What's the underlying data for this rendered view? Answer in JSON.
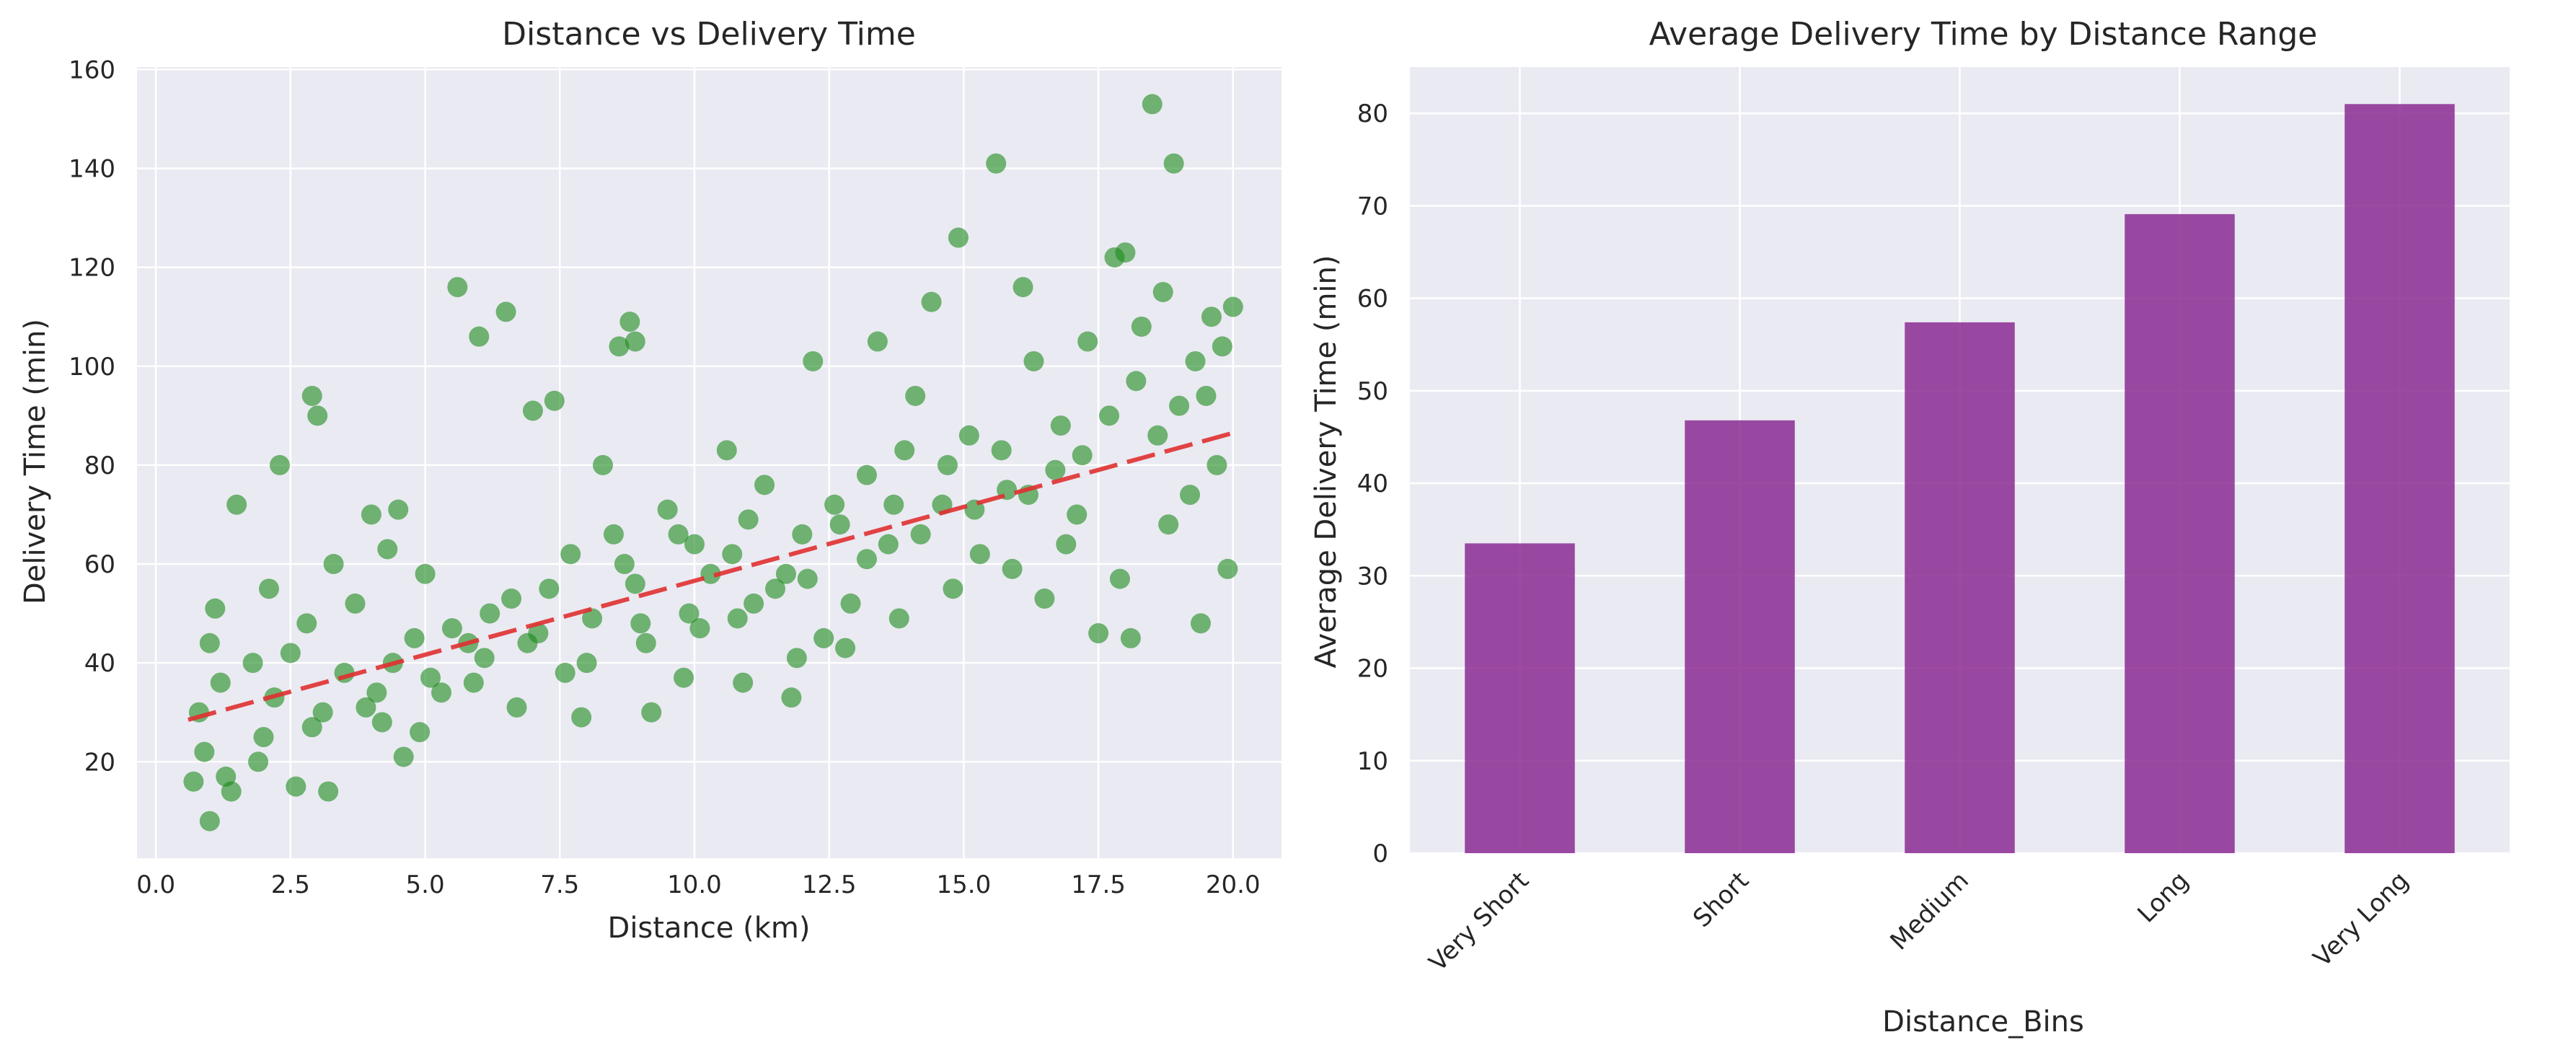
{
  "chart_data": [
    {
      "type": "scatter",
      "title": "Distance vs Delivery Time",
      "xlabel": "Distance (km)",
      "ylabel": "Delivery Time (min)",
      "xlim": [
        -0.35,
        20.9
      ],
      "ylim": [
        0.5,
        160.5
      ],
      "xticks": [
        0,
        2.5,
        5,
        7.5,
        10,
        12.5,
        15,
        17.5,
        20
      ],
      "xtick_labels": [
        "0.0",
        "2.5",
        "5.0",
        "7.5",
        "10.0",
        "12.5",
        "15.0",
        "17.5",
        "20.0"
      ],
      "yticks": [
        20,
        40,
        60,
        80,
        100,
        120,
        140,
        160
      ],
      "ytick_labels": [
        "20",
        "40",
        "60",
        "80",
        "100",
        "120",
        "140",
        "160"
      ],
      "grid": true,
      "point_color": "#1a8a1a",
      "trend_color": "#e03030",
      "trend_line": {
        "x": [
          0.6,
          20.0
        ],
        "y": [
          28.5,
          86.5
        ],
        "style": "dashed"
      },
      "points": [
        [
          0.8,
          30
        ],
        [
          1.0,
          44
        ],
        [
          1.1,
          51
        ],
        [
          0.9,
          22
        ],
        [
          1.2,
          36
        ],
        [
          1.5,
          72
        ],
        [
          1.3,
          17
        ],
        [
          1.0,
          8
        ],
        [
          0.7,
          16
        ],
        [
          1.8,
          40
        ],
        [
          2.0,
          25
        ],
        [
          2.3,
          80
        ],
        [
          2.2,
          33
        ],
        [
          2.5,
          42
        ],
        [
          2.6,
          15
        ],
        [
          2.9,
          94
        ],
        [
          3.0,
          90
        ],
        [
          2.8,
          48
        ],
        [
          3.2,
          14
        ],
        [
          3.5,
          38
        ],
        [
          3.7,
          52
        ],
        [
          4.0,
          70
        ],
        [
          4.2,
          28
        ],
        [
          4.3,
          63
        ],
        [
          4.5,
          71
        ],
        [
          4.6,
          21
        ],
        [
          4.8,
          45
        ],
        [
          5.0,
          58
        ],
        [
          5.3,
          34
        ],
        [
          5.6,
          116
        ],
        [
          5.8,
          44
        ],
        [
          6.0,
          106
        ],
        [
          6.2,
          50
        ],
        [
          6.5,
          111
        ],
        [
          6.7,
          31
        ],
        [
          7.0,
          91
        ],
        [
          7.3,
          55
        ],
        [
          7.4,
          93
        ],
        [
          7.7,
          62
        ],
        [
          8.0,
          40
        ],
        [
          8.3,
          80
        ],
        [
          8.5,
          66
        ],
        [
          8.6,
          104
        ],
        [
          8.8,
          109
        ],
        [
          8.9,
          105
        ],
        [
          9.0,
          48
        ],
        [
          9.2,
          30
        ],
        [
          9.5,
          71
        ],
        [
          9.8,
          37
        ],
        [
          10.0,
          64
        ],
        [
          10.3,
          58
        ],
        [
          10.6,
          83
        ],
        [
          10.8,
          49
        ],
        [
          11.0,
          69
        ],
        [
          11.3,
          76
        ],
        [
          11.5,
          55
        ],
        [
          11.8,
          33
        ],
        [
          12.0,
          66
        ],
        [
          12.2,
          101
        ],
        [
          12.4,
          45
        ],
        [
          12.6,
          72
        ],
        [
          12.9,
          52
        ],
        [
          13.2,
          78
        ],
        [
          13.4,
          105
        ],
        [
          13.6,
          64
        ],
        [
          13.9,
          83
        ],
        [
          14.1,
          94
        ],
        [
          14.4,
          113
        ],
        [
          14.6,
          72
        ],
        [
          14.9,
          126
        ],
        [
          15.1,
          86
        ],
        [
          15.3,
          62
        ],
        [
          15.6,
          141
        ],
        [
          15.8,
          75
        ],
        [
          16.1,
          116
        ],
        [
          16.3,
          101
        ],
        [
          16.5,
          53
        ],
        [
          16.8,
          88
        ],
        [
          17.1,
          70
        ],
        [
          17.3,
          105
        ],
        [
          17.5,
          46
        ],
        [
          17.8,
          122
        ],
        [
          18.0,
          123
        ],
        [
          18.1,
          45
        ],
        [
          18.3,
          108
        ],
        [
          18.5,
          153
        ],
        [
          18.7,
          115
        ],
        [
          18.9,
          141
        ],
        [
          19.0,
          92
        ],
        [
          19.2,
          74
        ],
        [
          19.4,
          48
        ],
        [
          19.6,
          110
        ],
        [
          19.8,
          104
        ],
        [
          20.0,
          112
        ],
        [
          19.9,
          59
        ],
        [
          19.7,
          80
        ],
        [
          18.8,
          68
        ],
        [
          17.9,
          57
        ],
        [
          16.9,
          64
        ],
        [
          15.9,
          59
        ],
        [
          14.8,
          55
        ],
        [
          13.8,
          49
        ],
        [
          12.8,
          43
        ],
        [
          11.9,
          41
        ],
        [
          10.9,
          36
        ],
        [
          9.9,
          50
        ],
        [
          8.9,
          56
        ],
        [
          7.9,
          29
        ],
        [
          6.9,
          44
        ],
        [
          5.9,
          36
        ],
        [
          4.9,
          26
        ],
        [
          3.9,
          31
        ],
        [
          2.9,
          27
        ],
        [
          1.9,
          20
        ],
        [
          1.4,
          14
        ],
        [
          2.1,
          55
        ],
        [
          3.3,
          60
        ],
        [
          4.4,
          40
        ],
        [
          5.5,
          47
        ],
        [
          6.6,
          53
        ],
        [
          7.6,
          38
        ],
        [
          8.7,
          60
        ],
        [
          9.7,
          66
        ],
        [
          10.7,
          62
        ],
        [
          11.7,
          58
        ],
        [
          12.7,
          68
        ],
        [
          13.7,
          72
        ],
        [
          14.7,
          80
        ],
        [
          15.7,
          83
        ],
        [
          16.7,
          79
        ],
        [
          17.7,
          90
        ],
        [
          18.6,
          86
        ],
        [
          19.5,
          94
        ],
        [
          19.3,
          101
        ],
        [
          18.2,
          97
        ],
        [
          17.2,
          82
        ],
        [
          16.2,
          74
        ],
        [
          15.2,
          71
        ],
        [
          14.2,
          66
        ],
        [
          13.2,
          61
        ],
        [
          12.1,
          57
        ],
        [
          11.1,
          52
        ],
        [
          10.1,
          47
        ],
        [
          9.1,
          44
        ],
        [
          8.1,
          49
        ],
        [
          7.1,
          46
        ],
        [
          6.1,
          41
        ],
        [
          5.1,
          37
        ],
        [
          4.1,
          34
        ],
        [
          3.1,
          30
        ]
      ]
    },
    {
      "type": "bar",
      "title": "Average Delivery Time by Distance Range",
      "xlabel": "Distance_Bins",
      "ylabel": "Average Delivery Time (min)",
      "categories": [
        "Very Short",
        "Short",
        "Medium",
        "Long",
        "Very Long"
      ],
      "values": [
        33.5,
        46.8,
        57.4,
        69.1,
        81.0
      ],
      "ylim": [
        0,
        85.0
      ],
      "yticks": [
        0,
        10,
        20,
        30,
        40,
        50,
        60,
        70,
        80
      ],
      "ytick_labels": [
        "0",
        "10",
        "20",
        "30",
        "40",
        "50",
        "60",
        "70",
        "80"
      ],
      "grid": true,
      "bar_color": "#8b2b93"
    }
  ]
}
